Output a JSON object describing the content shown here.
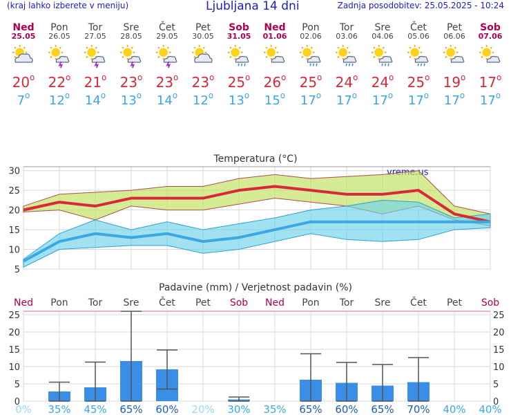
{
  "header": {
    "left": "(kraj lahko izberete v meniju)",
    "title": "Ljubljana 14 dni",
    "updated": "Zadnja posodobitev: 25.05.2025 - 10:24"
  },
  "days": [
    {
      "name": "Ned",
      "date": "25.05",
      "weekend": true,
      "icon": "cloud-sun-icon",
      "max": "20",
      "min": "7"
    },
    {
      "name": "Pon",
      "date": "26.05",
      "weekend": false,
      "icon": "sun-thunderstorm-icon",
      "max": "22",
      "min": "12"
    },
    {
      "name": "Tor",
      "date": "27.05",
      "weekend": false,
      "icon": "sun-thunderstorm-icon",
      "max": "21",
      "min": "14"
    },
    {
      "name": "Sre",
      "date": "28.05",
      "weekend": false,
      "icon": "sun-thunderstorm-icon",
      "max": "23",
      "min": "13"
    },
    {
      "name": "Čet",
      "date": "29.05",
      "weekend": false,
      "icon": "sun-thunderstorm-icon",
      "max": "23",
      "min": "14"
    },
    {
      "name": "Pet",
      "date": "30.05",
      "weekend": false,
      "icon": "cloud-sun-icon",
      "max": "23",
      "min": "12"
    },
    {
      "name": "Sob",
      "date": "31.05",
      "weekend": true,
      "icon": "sun-rain-icon",
      "max": "25",
      "min": "13"
    },
    {
      "name": "Ned",
      "date": "01.06",
      "weekend": true,
      "icon": "sun-cloud-icon",
      "max": "26",
      "min": "15"
    },
    {
      "name": "Pon",
      "date": "02.06",
      "weekend": false,
      "icon": "sun-rain-icon",
      "max": "25",
      "min": "17"
    },
    {
      "name": "Tor",
      "date": "03.06",
      "weekend": false,
      "icon": "sun-rain-icon",
      "max": "24",
      "min": "17"
    },
    {
      "name": "Sre",
      "date": "04.06",
      "weekend": false,
      "icon": "sun-rain-icon",
      "max": "24",
      "min": "17"
    },
    {
      "name": "Čet",
      "date": "05.06",
      "weekend": false,
      "icon": "sun-rain-icon",
      "max": "25",
      "min": "17"
    },
    {
      "name": "Pet",
      "date": "06.06",
      "weekend": false,
      "icon": "sun-cloud-icon",
      "max": "19",
      "min": "17"
    },
    {
      "name": "Sob",
      "date": "07.06",
      "weekend": true,
      "icon": "sun-cloud-icon",
      "max": "17",
      "min": "17"
    }
  ],
  "chart_data": [
    {
      "type": "line",
      "title": "Temperatura (°C)",
      "watermark": "vreme.us",
      "ylim": [
        5,
        31
      ],
      "yticks": [
        "5",
        "10",
        "15",
        "20",
        "25",
        "30"
      ],
      "x": [
        "25.05",
        "26.05",
        "27.05",
        "28.05",
        "29.05",
        "30.05",
        "31.05",
        "01.06",
        "02.06",
        "03.06",
        "04.06",
        "05.06",
        "06.06",
        "07.06"
      ],
      "series": [
        {
          "name": "max",
          "color": "#d8283a",
          "values": [
            20,
            22,
            21,
            23,
            23,
            23,
            25,
            26,
            25,
            24,
            24,
            25,
            19,
            17
          ]
        },
        {
          "name": "max_high",
          "values": [
            21,
            24,
            24.5,
            25,
            26,
            26,
            28,
            29,
            28,
            28.5,
            29,
            30,
            21,
            19
          ]
        },
        {
          "name": "max_low",
          "values": [
            19.5,
            20,
            17.5,
            21,
            20,
            20,
            21.5,
            23,
            22,
            21,
            19,
            21,
            17.5,
            16
          ]
        },
        {
          "name": "min",
          "color": "#3aa7e6",
          "values": [
            7,
            12,
            14,
            13,
            14,
            12,
            13,
            15,
            17,
            17,
            17,
            17,
            17,
            17
          ]
        },
        {
          "name": "min_high",
          "values": [
            7.5,
            14,
            17.5,
            15,
            17,
            15,
            16.5,
            18,
            20,
            21,
            22.5,
            22,
            18,
            19
          ]
        },
        {
          "name": "min_low",
          "values": [
            5.5,
            10,
            10.5,
            11,
            11,
            9,
            10,
            12,
            14,
            12.5,
            12,
            12.5,
            15,
            15.5
          ]
        }
      ]
    },
    {
      "type": "bar",
      "title": "Padavine (mm) / Verjetnost padavin (%)",
      "ylim": [
        0,
        26
      ],
      "yticks": [
        "0",
        "5",
        "10",
        "15",
        "20",
        "25"
      ],
      "categories": [
        "Ned",
        "Pon",
        "Tor",
        "Sre",
        "Čet",
        "Pet",
        "Sob",
        "Ned",
        "Pon",
        "Tor",
        "Sre",
        "Čet",
        "Pet",
        "Sob"
      ],
      "weekend": [
        true,
        false,
        false,
        false,
        false,
        false,
        true,
        true,
        false,
        false,
        false,
        false,
        false,
        true
      ],
      "values": [
        0,
        2.8,
        4,
        11.6,
        9.2,
        0,
        0.5,
        0,
        6.2,
        5.3,
        4.5,
        5.5,
        0,
        0
      ],
      "err_low": [
        0,
        0,
        0,
        0,
        3.5,
        0,
        0,
        0,
        0,
        0,
        0,
        0,
        0,
        0
      ],
      "err_high": [
        0,
        5.5,
        11.3,
        26,
        14.8,
        0,
        1.2,
        0,
        13.7,
        11.2,
        10.6,
        12.6,
        0,
        0
      ],
      "probability": [
        "0%",
        "35%",
        "45%",
        "65%",
        "60%",
        "20%",
        "30%",
        "35%",
        "65%",
        "60%",
        "65%",
        "70%",
        "40%",
        "40%"
      ],
      "bar_color": "#3a8ee6"
    }
  ]
}
